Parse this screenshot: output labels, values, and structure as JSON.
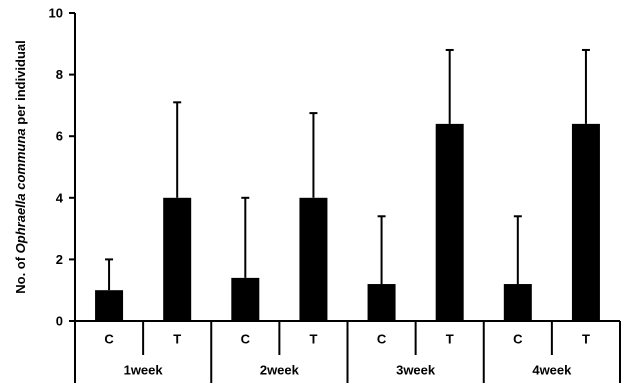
{
  "chart_data": {
    "type": "bar",
    "title": "",
    "ylabel": {
      "prefix": "No. of ",
      "italic": "Ophraella communa",
      "suffix": " per individual"
    },
    "ylim": [
      0,
      10
    ],
    "yticks": [
      0,
      2,
      4,
      6,
      8,
      10
    ],
    "groups": [
      {
        "label": "1week",
        "bars": [
          {
            "label": "C",
            "value": 1.0,
            "error": 1.0
          },
          {
            "label": "T",
            "value": 4.0,
            "error": 3.1
          }
        ]
      },
      {
        "label": "2week",
        "bars": [
          {
            "label": "C",
            "value": 1.4,
            "error": 2.6
          },
          {
            "label": "T",
            "value": 4.0,
            "error": 2.75
          }
        ]
      },
      {
        "label": "3week",
        "bars": [
          {
            "label": "C",
            "value": 1.2,
            "error": 2.2
          },
          {
            "label": "T",
            "value": 6.4,
            "error": 2.4
          }
        ]
      },
      {
        "label": "4week",
        "bars": [
          {
            "label": "C",
            "value": 1.2,
            "error": 2.2
          },
          {
            "label": "T",
            "value": 6.4,
            "error": 2.4
          }
        ]
      }
    ],
    "colors": {
      "bar": "#000000",
      "axis": "#000000"
    },
    "grid": false,
    "legend": "none"
  }
}
